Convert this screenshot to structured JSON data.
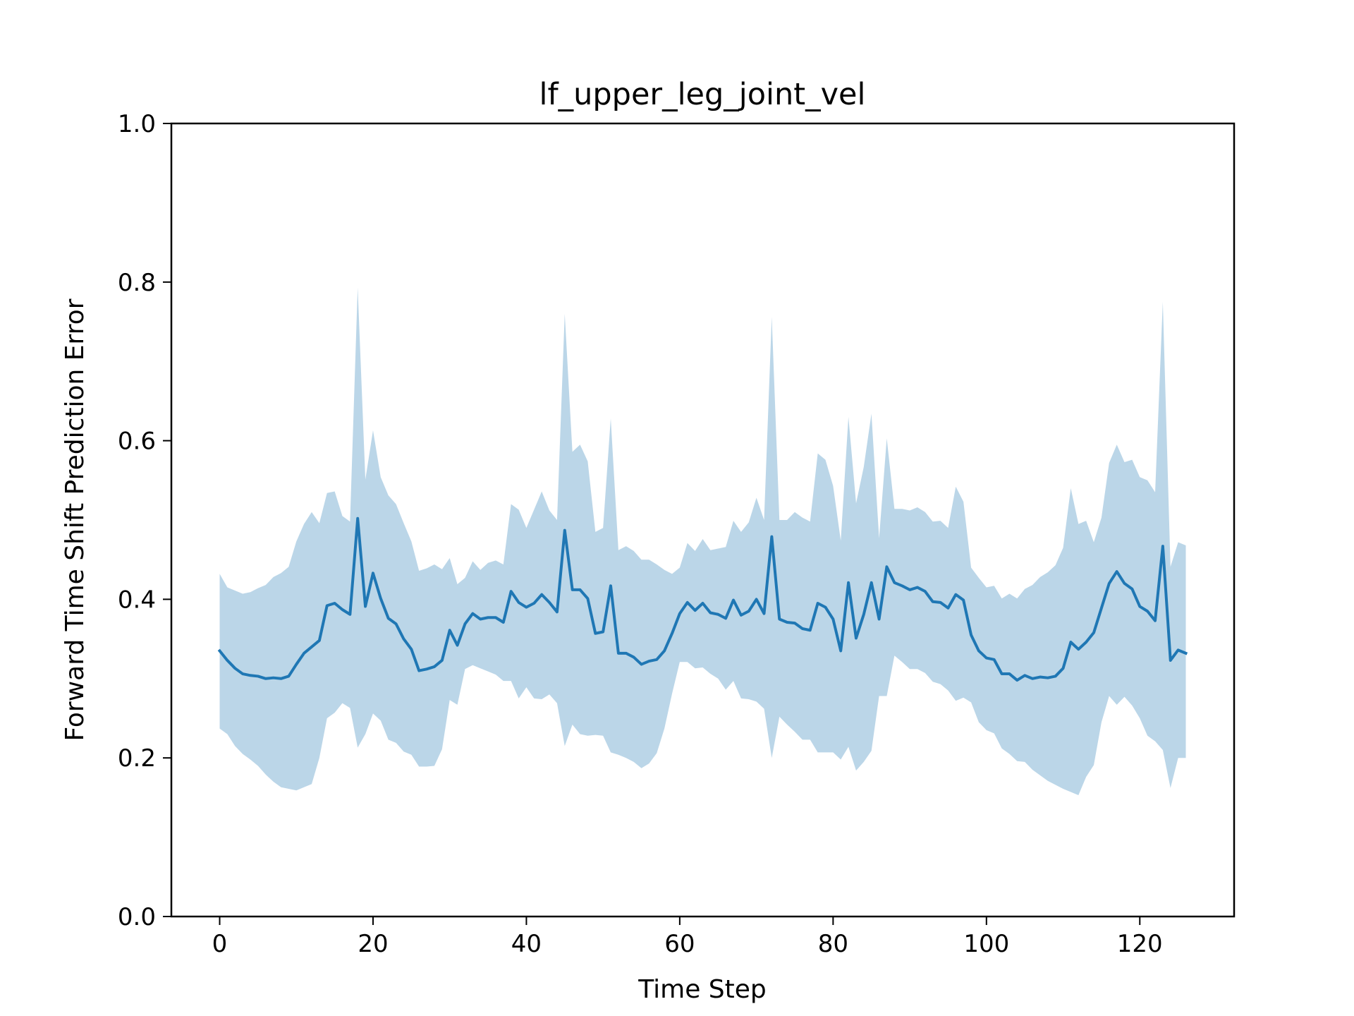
{
  "chart_data": {
    "type": "line",
    "title": "lf_upper_leg_joint_vel",
    "xlabel": "Time Step",
    "ylabel": "Forward Time Shift Prediction Error",
    "xlim": [
      -6.3,
      132.3
    ],
    "ylim": [
      0.0,
      1.0
    ],
    "xticks": [
      0,
      20,
      40,
      60,
      80,
      100,
      120
    ],
    "yticks": [
      0.0,
      0.2,
      0.4,
      0.6,
      0.8,
      1.0
    ],
    "xtick_labels": [
      "0",
      "20",
      "40",
      "60",
      "80",
      "100",
      "120"
    ],
    "ytick_labels": [
      "0.0",
      "0.2",
      "0.4",
      "0.6",
      "0.8",
      "1.0"
    ],
    "grid": false,
    "legend": "none",
    "colors": {
      "line": "#1f77b4",
      "band": "#1f77b4",
      "band_opacity": 0.3
    },
    "series": [
      {
        "x": [
          0,
          1,
          2,
          3,
          4,
          5,
          6,
          7,
          8,
          9,
          10,
          11,
          12,
          13,
          14,
          15,
          16,
          17,
          18,
          19,
          20,
          21,
          22,
          23,
          24,
          25,
          26,
          27,
          28,
          29,
          30,
          31,
          32,
          33,
          34,
          35,
          36,
          37,
          38,
          39,
          40,
          41,
          42,
          43,
          44,
          45,
          46,
          47,
          48,
          49,
          50,
          51,
          52,
          53,
          54,
          55,
          56,
          57,
          58,
          59,
          60,
          61,
          62,
          63,
          64,
          65,
          66,
          67,
          68,
          69,
          70,
          71,
          72,
          73,
          74,
          75,
          76,
          77,
          78,
          79,
          80,
          81,
          82,
          83,
          84,
          85,
          86,
          87,
          88,
          89,
          90,
          91,
          92,
          93,
          94,
          95,
          96,
          97,
          98,
          99,
          100,
          101,
          102,
          103,
          104,
          105,
          106,
          107,
          108,
          109,
          110,
          111,
          112,
          113,
          114,
          115,
          116,
          117,
          118,
          119,
          120,
          121,
          122,
          123,
          124,
          125,
          126
        ],
        "mean": [
          0.335,
          0.323,
          0.313,
          0.306,
          0.304,
          0.303,
          0.3,
          0.301,
          0.3,
          0.303,
          0.318,
          0.332,
          0.34,
          0.348,
          0.392,
          0.395,
          0.387,
          0.381,
          0.502,
          0.391,
          0.433,
          0.401,
          0.376,
          0.369,
          0.35,
          0.337,
          0.31,
          0.312,
          0.315,
          0.323,
          0.361,
          0.342,
          0.369,
          0.382,
          0.375,
          0.377,
          0.377,
          0.371,
          0.41,
          0.396,
          0.39,
          0.395,
          0.406,
          0.396,
          0.384,
          0.487,
          0.412,
          0.412,
          0.401,
          0.357,
          0.359,
          0.417,
          0.332,
          0.332,
          0.327,
          0.318,
          0.322,
          0.324,
          0.335,
          0.357,
          0.382,
          0.396,
          0.386,
          0.395,
          0.383,
          0.381,
          0.376,
          0.399,
          0.38,
          0.385,
          0.4,
          0.382,
          0.479,
          0.375,
          0.371,
          0.37,
          0.363,
          0.361,
          0.395,
          0.39,
          0.375,
          0.335,
          0.421,
          0.351,
          0.381,
          0.421,
          0.375,
          0.441,
          0.421,
          0.417,
          0.412,
          0.415,
          0.41,
          0.397,
          0.396,
          0.389,
          0.406,
          0.399,
          0.355,
          0.335,
          0.326,
          0.324,
          0.306,
          0.306,
          0.298,
          0.304,
          0.3,
          0.302,
          0.301,
          0.303,
          0.313,
          0.346,
          0.337,
          0.346,
          0.358,
          0.389,
          0.42,
          0.435,
          0.42,
          0.413,
          0.391,
          0.385,
          0.373,
          0.467,
          0.323,
          0.336,
          0.332
        ],
        "upper": [
          0.432,
          0.415,
          0.411,
          0.407,
          0.409,
          0.414,
          0.418,
          0.428,
          0.433,
          0.441,
          0.473,
          0.495,
          0.51,
          0.496,
          0.534,
          0.536,
          0.505,
          0.498,
          0.793,
          0.551,
          0.613,
          0.554,
          0.531,
          0.52,
          0.496,
          0.473,
          0.436,
          0.439,
          0.444,
          0.438,
          0.452,
          0.419,
          0.427,
          0.448,
          0.437,
          0.446,
          0.449,
          0.444,
          0.52,
          0.513,
          0.49,
          0.513,
          0.536,
          0.512,
          0.5,
          0.76,
          0.586,
          0.595,
          0.574,
          0.485,
          0.49,
          0.628,
          0.462,
          0.467,
          0.461,
          0.45,
          0.45,
          0.444,
          0.437,
          0.432,
          0.44,
          0.471,
          0.461,
          0.476,
          0.462,
          0.464,
          0.466,
          0.499,
          0.485,
          0.497,
          0.528,
          0.5,
          0.756,
          0.5,
          0.5,
          0.51,
          0.503,
          0.498,
          0.584,
          0.576,
          0.543,
          0.474,
          0.63,
          0.521,
          0.567,
          0.634,
          0.477,
          0.603,
          0.514,
          0.514,
          0.512,
          0.516,
          0.51,
          0.498,
          0.499,
          0.49,
          0.542,
          0.523,
          0.44,
          0.427,
          0.415,
          0.417,
          0.401,
          0.407,
          0.401,
          0.413,
          0.418,
          0.428,
          0.434,
          0.443,
          0.465,
          0.54,
          0.495,
          0.499,
          0.472,
          0.503,
          0.572,
          0.595,
          0.573,
          0.576,
          0.554,
          0.55,
          0.535,
          0.775,
          0.441,
          0.472,
          0.468
        ],
        "lower": [
          0.237,
          0.23,
          0.215,
          0.205,
          0.198,
          0.19,
          0.179,
          0.17,
          0.163,
          0.161,
          0.159,
          0.163,
          0.167,
          0.2,
          0.25,
          0.257,
          0.269,
          0.263,
          0.213,
          0.23,
          0.256,
          0.247,
          0.223,
          0.219,
          0.208,
          0.204,
          0.189,
          0.189,
          0.19,
          0.211,
          0.273,
          0.267,
          0.312,
          0.317,
          0.313,
          0.309,
          0.305,
          0.297,
          0.297,
          0.275,
          0.289,
          0.275,
          0.274,
          0.28,
          0.269,
          0.215,
          0.242,
          0.23,
          0.228,
          0.229,
          0.228,
          0.207,
          0.204,
          0.2,
          0.195,
          0.187,
          0.193,
          0.206,
          0.237,
          0.281,
          0.321,
          0.321,
          0.313,
          0.314,
          0.306,
          0.3,
          0.286,
          0.297,
          0.275,
          0.274,
          0.271,
          0.262,
          0.2,
          0.252,
          0.242,
          0.233,
          0.223,
          0.223,
          0.207,
          0.207,
          0.207,
          0.198,
          0.214,
          0.184,
          0.195,
          0.209,
          0.278,
          0.278,
          0.329,
          0.321,
          0.312,
          0.312,
          0.307,
          0.296,
          0.293,
          0.285,
          0.272,
          0.276,
          0.27,
          0.245,
          0.235,
          0.231,
          0.212,
          0.205,
          0.196,
          0.195,
          0.185,
          0.178,
          0.171,
          0.166,
          0.161,
          0.157,
          0.153,
          0.176,
          0.191,
          0.245,
          0.278,
          0.267,
          0.277,
          0.266,
          0.25,
          0.228,
          0.221,
          0.21,
          0.162,
          0.2,
          0.2
        ]
      }
    ]
  }
}
